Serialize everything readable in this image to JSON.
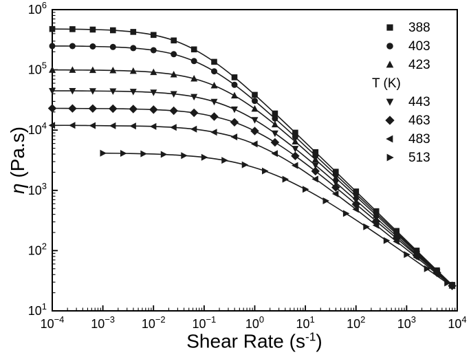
{
  "figure": {
    "background": "#ffffff"
  },
  "chart_data": {
    "type": "line",
    "title": "",
    "x_axis": {
      "label_pre": "Shear Rate (s",
      "label_sup": "-1",
      "label_post": ")",
      "label_full": "Shear Rate (s⁻¹)",
      "scale": "log",
      "min": 0.0001,
      "max": 10000,
      "tick_exponents": [
        -4,
        -3,
        -2,
        -1,
        0,
        1,
        2,
        3,
        4
      ],
      "tick_labels": [
        "10⁻⁴",
        "10⁻³",
        "10⁻²",
        "10⁻¹",
        "10⁰",
        "10¹",
        "10²",
        "10³",
        "10⁴"
      ]
    },
    "y_axis": {
      "label_symbol": "η",
      "label_rest": " (Pa.s)",
      "label_full": "η (Pa.s)",
      "scale": "log",
      "min": 10,
      "max": 1000000,
      "tick_exponents": [
        1,
        2,
        3,
        4,
        5,
        6
      ],
      "tick_labels": [
        "10¹",
        "10²",
        "10³",
        "10⁴",
        "10⁵",
        "10⁶"
      ]
    },
    "legend": {
      "title": "T (K)",
      "title_row_index": 3,
      "position": "top-right",
      "entries": [
        "388",
        "403",
        "423",
        "443",
        "463",
        "483",
        "513"
      ]
    },
    "style": {
      "axis_color": "#000000",
      "series_color": "#1a1a1a",
      "grid": false
    },
    "series": [
      {
        "name": "388",
        "marker": "square",
        "x": [
          0.0001,
          0.000251,
          0.000631,
          0.00158,
          0.00398,
          0.01,
          0.0251,
          0.0631,
          0.158,
          0.398,
          1,
          2.51,
          6.31,
          15.8,
          39.8,
          100,
          251,
          631,
          1580,
          3980,
          7940
        ],
        "y": [
          477000,
          474000,
          467000,
          454000,
          427000,
          380000,
          308000,
          219000,
          136000,
          75200,
          38500,
          18900,
          9080,
          4310,
          2040,
          958,
          451,
          212,
          100,
          47,
          27
        ]
      },
      {
        "name": "403",
        "marker": "circle",
        "x": [
          0.0001,
          0.000251,
          0.000631,
          0.00158,
          0.00398,
          0.01,
          0.0251,
          0.0631,
          0.158,
          0.398,
          1,
          2.51,
          6.31,
          15.8,
          39.8,
          100,
          251,
          631,
          1580,
          3980,
          7940
        ],
        "y": [
          249000,
          248000,
          245000,
          240000,
          230000,
          212000,
          182000,
          140000,
          94700,
          56500,
          30600,
          15600,
          7740,
          3770,
          1820,
          872,
          419,
          200,
          96,
          46,
          26
        ]
      },
      {
        "name": "423",
        "marker": "triangle-up",
        "x": [
          0.0001,
          0.000251,
          0.000631,
          0.00158,
          0.00398,
          0.01,
          0.0251,
          0.0631,
          0.158,
          0.398,
          1,
          2.51,
          6.31,
          15.8,
          39.8,
          100,
          251,
          631,
          1580,
          3980,
          7940
        ],
        "y": [
          99700,
          99500,
          98900,
          97800,
          95600,
          91300,
          83700,
          71400,
          54900,
          37300,
          22500,
          12400,
          6450,
          3250,
          1610,
          792,
          388,
          189,
          92,
          45,
          26
        ]
      },
      {
        "name": "443",
        "marker": "triangle-down",
        "x": [
          0.0001,
          0.000251,
          0.000631,
          0.00158,
          0.00398,
          0.01,
          0.0251,
          0.0631,
          0.158,
          0.398,
          1,
          2.51,
          6.31,
          15.8,
          39.8,
          100,
          251,
          631,
          1580,
          3980,
          7940
        ],
        "y": [
          44900,
          44800,
          44600,
          44300,
          43600,
          42300,
          39900,
          35800,
          29700,
          22200,
          14800,
          8860,
          4920,
          2610,
          1350,
          685,
          346,
          174,
          87,
          44,
          26
        ]
      },
      {
        "name": "463",
        "marker": "diamond",
        "x": [
          0.0001,
          0.000251,
          0.000631,
          0.00158,
          0.00398,
          0.01,
          0.0251,
          0.0631,
          0.158,
          0.398,
          1,
          2.51,
          6.31,
          15.8,
          39.8,
          100,
          251,
          631,
          1580,
          3980,
          7940
        ],
        "y": [
          23000,
          22900,
          22800,
          22700,
          22400,
          21900,
          21000,
          19400,
          16800,
          13500,
          9670,
          6260,
          3720,
          2080,
          1120,
          590,
          308,
          160,
          83,
          43,
          26
        ]
      },
      {
        "name": "483",
        "marker": "triangle-left",
        "x": [
          0.0001,
          0.000251,
          0.000631,
          0.00158,
          0.00398,
          0.01,
          0.0251,
          0.0631,
          0.158,
          0.398,
          1,
          2.51,
          6.31,
          15.8,
          39.8,
          100,
          251,
          631,
          1580,
          3980,
          7940
        ],
        "y": [
          12000,
          12000,
          11900,
          11800,
          11700,
          11500,
          11100,
          10400,
          9250,
          7710,
          5880,
          4080,
          2590,
          1540,
          874,
          484,
          263,
          142,
          77,
          41,
          26
        ]
      },
      {
        "name": "513",
        "marker": "triangle-right",
        "x": [
          0.001,
          0.00251,
          0.00631,
          0.0158,
          0.0398,
          0.1,
          0.251,
          0.631,
          1.58,
          3.98,
          10,
          25.1,
          63.1,
          158,
          398,
          1000,
          2510,
          6310
        ],
        "y": [
          4150,
          4110,
          4050,
          3950,
          3780,
          3530,
          3150,
          2660,
          2100,
          1530,
          1040,
          671,
          414,
          249,
          147,
          86,
          50,
          29
        ]
      }
    ]
  }
}
